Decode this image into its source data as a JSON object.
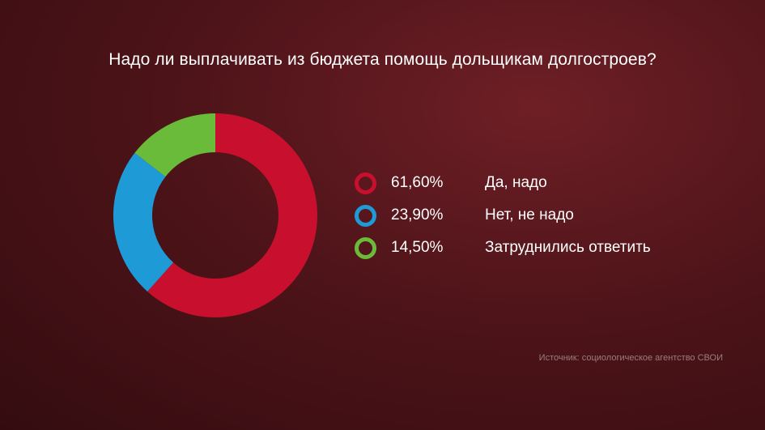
{
  "title": "Надо ли выплачивать из бюджета помощь дольщикам долгостроев?",
  "chart_data": {
    "type": "pie",
    "title": "Надо ли выплачивать из бюджета помощь дольщикам долгостроев?",
    "series": [
      {
        "name": "Да, надо",
        "value": 61.6,
        "label": "61,60%",
        "color": "#c8102e"
      },
      {
        "name": "Нет, не надо",
        "value": 23.9,
        "label": "23,90%",
        "color": "#1e9bd7"
      },
      {
        "name": "Затруднились ответить",
        "value": 14.5,
        "label": "14,50%",
        "color": "#6abb3a"
      }
    ],
    "legend_placement": "right"
  },
  "source": "Источник: социологическое агентство СВОИ"
}
